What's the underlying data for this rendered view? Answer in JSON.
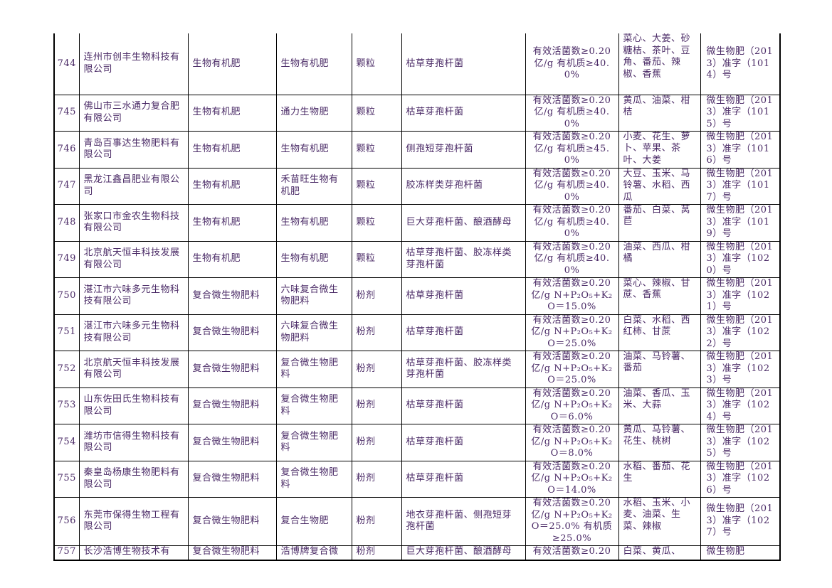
{
  "table": {
    "rows": [
      [
        "744",
        "连州市创丰生物科技有限公司",
        "生物有机肥",
        "生物有机肥",
        "颗粒",
        "枯草芽孢杆菌",
        "有效活菌数≥0.20亿/g 有机质≥40.0%",
        "菜心、大姜、砂糖桔、茶叶、豆角、番茄、辣椒、香蕉",
        "微生物肥（2013）准字（1014）号"
      ],
      [
        "745",
        "佛山市三水通力复合肥有限公司",
        "生物有机肥",
        "通力生物肥",
        "颗粒",
        "枯草芽孢杆菌",
        "有效活菌数≥0.20亿/g 有机质≥40.0%",
        "黄瓜、油菜、柑桔",
        "微生物肥（2013）准字（1015）号"
      ],
      [
        "746",
        "青岛百事达生物肥料有限公司",
        "生物有机肥",
        "生物有机肥",
        "颗粒",
        "侧孢短芽孢杆菌",
        "有效活菌数≥0.20亿/g 有机质≥45.0%",
        "小麦、花生、萝卜、苹果、茶叶、大姜",
        "微生物肥（2013）准字（1016）号"
      ],
      [
        "747",
        "黑龙江鑫昌肥业有限公司",
        "生物有机肥",
        "禾苗旺生物有机肥",
        "颗粒",
        "胶冻样类芽孢杆菌",
        "有效活菌数≥0.20亿/g 有机质≥40.0%",
        "大豆、玉米、马铃薯、水稻、西瓜",
        "微生物肥（2013）准字（1017）号"
      ],
      [
        "748",
        "张家口市金农生物科技有限公司",
        "生物有机肥",
        "生物有机肥",
        "颗粒",
        "巨大芽孢杆菌、酿酒酵母",
        "有效活菌数≥0.20亿/g 有机质≥40.0%",
        "番茄、白菜、莴苣",
        "微生物肥（2013）准字（1019）号"
      ],
      [
        "749",
        "北京航天恒丰科技发展有限公司",
        "生物有机肥",
        "生物有机肥",
        "颗粒",
        "枯草芽孢杆菌、胶冻样类芽孢杆菌",
        "有效活菌数≥0.20亿/g 有机质≥40.0%",
        "油菜、西瓜、柑橘",
        "微生物肥（2013）准字（1020）号"
      ],
      [
        "750",
        "湛江市六味多元生物科技有限公司",
        "复合微生物肥料",
        "六味复合微生物肥料",
        "粉剂",
        "枯草芽孢杆菌",
        "有效活菌数≥0.20亿/g N+P₂O₅+K₂O＝15.0%",
        "菜心、辣椒、甘蔗、香蕉",
        "微生物肥（2013）准字（1021）号"
      ],
      [
        "751",
        "湛江市六味多元生物科技有限公司",
        "复合微生物肥料",
        "六味复合微生物肥料",
        "粉剂",
        "枯草芽孢杆菌",
        "有效活菌数≥0.20亿/g N+P₂O₅+K₂O＝25.0%",
        "白菜、水稻、西红柿、甘蔗",
        "微生物肥（2013）准字（1022）号"
      ],
      [
        "752",
        "北京航天恒丰科技发展有限公司",
        "复合微生物肥料",
        "复合微生物肥料",
        "粉剂",
        "枯草芽孢杆菌、胶冻样类芽孢杆菌",
        "有效活菌数≥0.20亿/g N+P₂O₅+K₂O＝25.0%",
        "油菜、马铃薯、番茄",
        "微生物肥（2013）准字（1023）号"
      ],
      [
        "753",
        "山东佐田氏生物科技有限公司",
        "复合微生物肥料",
        "复合微生物肥料",
        "粉剂",
        "枯草芽孢杆菌",
        "有效活菌数≥0.20亿/g N+P₂O₅+K₂O＝6.0%",
        "油菜、香瓜、玉米、大蒜",
        "微生物肥（2013）准字（1024）号"
      ],
      [
        "754",
        "潍坊市信得生物科技有限公司",
        "复合微生物肥料",
        "复合微生物肥料",
        "粉剂",
        "枯草芽孢杆菌",
        "有效活菌数≥0.20亿/g N+P₂O₅+K₂O＝8.0%",
        "黄瓜、马铃薯、花生、桃树",
        "微生物肥（2013）准字（1025）号"
      ],
      [
        "755",
        "秦皇岛杨康生物肥料有限公司",
        "复合微生物肥料",
        "复合微生物肥料",
        "粉剂",
        "枯草芽孢杆菌",
        "有效活菌数≥0.20亿/g N+P₂O₅+K₂O＝14.0%",
        "水稻、番茄、花生",
        "微生物肥（2013）准字（1026）号"
      ],
      [
        "756",
        "东莞市保得生物工程有限公司",
        "复合微生物肥料",
        "复合生物肥",
        "粉剂",
        "地衣芽孢杆菌、侧孢短芽孢杆菌",
        "有效活菌数≥0.20亿/g N+P₂O₅+K₂O＝25.0% 有机质≥25.0%",
        "水稻、玉米、小麦、油菜、生菜、辣椒",
        "微生物肥（2013）准字（1027）号"
      ],
      [
        "757",
        "长沙浩博生物技术有",
        "复合微生物肥料",
        "浩博牌复合微",
        "粉剂",
        "巨大芽孢杆菌、酿酒酵母",
        "有效活菌数≥0.20",
        "白菜、黄瓜、",
        "微生物肥"
      ]
    ]
  }
}
